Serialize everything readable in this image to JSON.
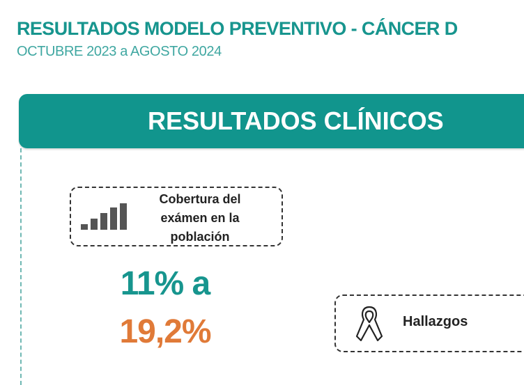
{
  "header": {
    "title": "RESULTADOS MODELO PREVENTIVO - CÁNCER D",
    "subtitle": "OCTUBRE 2023 a AGOSTO 2024"
  },
  "banner": {
    "label": "RESULTADOS CLÍNICOS"
  },
  "coverage": {
    "icon": "signal-bars-icon",
    "label": "Cobertura del exámen en la población",
    "value_from": "11% a",
    "value_to": "19,2%"
  },
  "findings": {
    "icon": "awareness-ribbon-icon",
    "label": "Hallazgos"
  },
  "colors": {
    "teal": "#11958d",
    "orange": "#e07a38"
  }
}
